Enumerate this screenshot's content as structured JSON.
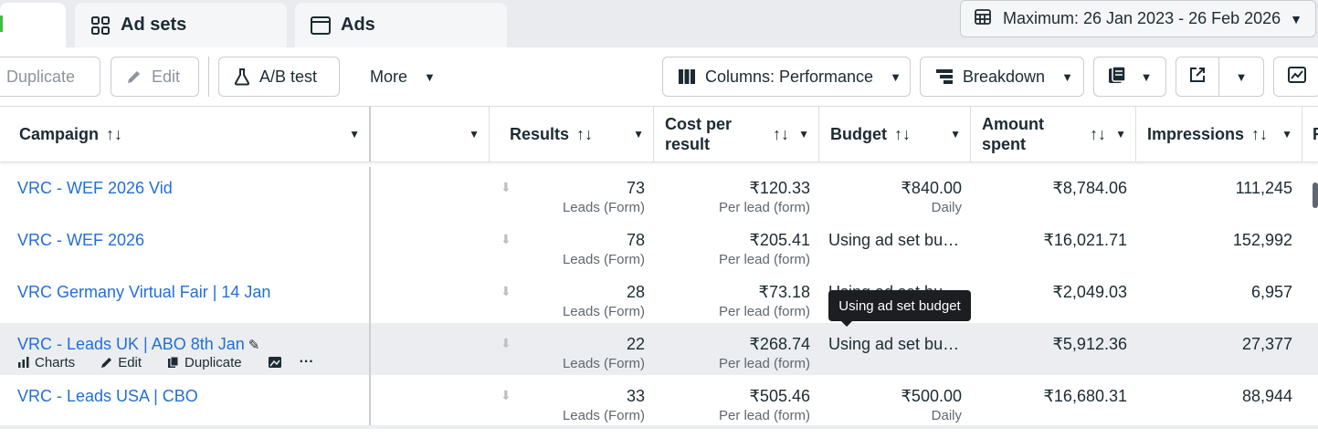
{
  "tabs": {
    "adsets_label": "Ad sets",
    "ads_label": "Ads"
  },
  "date_range": {
    "label": "Maximum: 26 Jan 2023 - 26 Feb 2026"
  },
  "toolbar": {
    "duplicate_label": "Duplicate",
    "edit_label": "Edit",
    "ab_test_label": "A/B test",
    "more_label": "More",
    "columns_label": "Columns: Performance",
    "breakdown_label": "Breakdown"
  },
  "columns": {
    "campaign": "Campaign",
    "results": "Results",
    "cost_per_result_line1": "Cost per",
    "cost_per_result_line2": "result",
    "budget": "Budget",
    "amount_spent_line1": "Amount",
    "amount_spent_line2": "spent",
    "impressions": "Impressions",
    "next": "R"
  },
  "rows": [
    {
      "name": "VRC - WEF 2026 Vid",
      "results": "73",
      "results_sub": "Leads (Form)",
      "cpr": "₹120.33",
      "cpr_sub": "Per lead (form)",
      "budget": "₹840.00",
      "budget_sub": "Daily",
      "budget_text": "",
      "amount": "₹8,784.06",
      "impressions": "111,245"
    },
    {
      "name": "VRC - WEF 2026",
      "results": "78",
      "results_sub": "Leads (Form)",
      "cpr": "₹205.41",
      "cpr_sub": "Per lead (form)",
      "budget": "",
      "budget_sub": "",
      "budget_text": "Using ad set bu…",
      "amount": "₹16,021.71",
      "impressions": "152,992"
    },
    {
      "name": "VRC Germany Virtual Fair | 14 Jan",
      "results": "28",
      "results_sub": "Leads (Form)",
      "cpr": "₹73.18",
      "cpr_sub": "Per lead (form)",
      "budget": "",
      "budget_sub": "",
      "budget_text": "Using ad set bu…",
      "amount": "₹2,049.03",
      "impressions": "6,957"
    },
    {
      "name": "VRC - Leads UK | ABO 8th Jan",
      "results": "22",
      "results_sub": "Leads (Form)",
      "cpr": "₹268.74",
      "cpr_sub": "Per lead (form)",
      "budget": "",
      "budget_sub": "",
      "budget_text": "Using ad set bu…",
      "amount": "₹5,912.36",
      "impressions": "27,377"
    },
    {
      "name": "VRC - Leads USA | CBO",
      "results": "33",
      "results_sub": "Leads (Form)",
      "cpr": "₹505.46",
      "cpr_sub": "Per lead (form)",
      "budget": "₹500.00",
      "budget_sub": "Daily",
      "budget_text": "",
      "amount": "₹16,680.31",
      "impressions": "88,944"
    }
  ],
  "row_actions": {
    "charts": "Charts",
    "edit": "Edit",
    "duplicate": "Duplicate",
    "more": "···"
  },
  "tooltip": {
    "text": "Using ad set budget"
  }
}
